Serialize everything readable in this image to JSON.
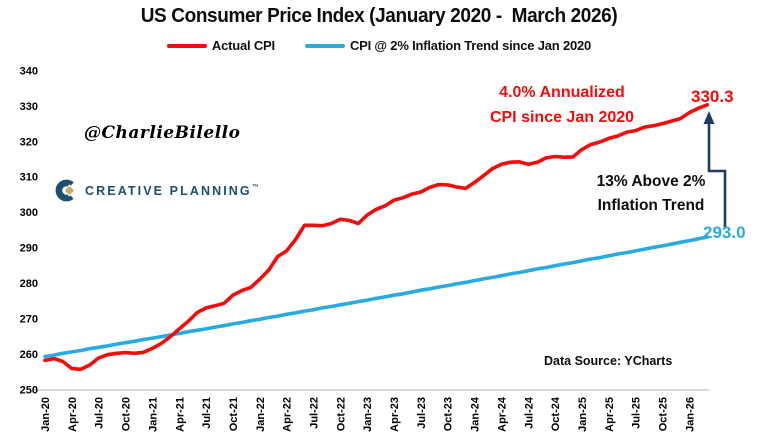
{
  "title": "US Consumer Price Index (January 2020 -  March 2026)",
  "colors": {
    "red": "#f40b0b",
    "blue": "#29abe2",
    "arrow": "#1f3a63",
    "logo_navy": "#1d4f6e",
    "logo_gold": "#c9a86a",
    "axis_line": "#d9d9d9"
  },
  "legend": {
    "items": [
      {
        "label": "Actual CPI",
        "color": "#f40b0b"
      },
      {
        "label": "CPI @ 2% Inflation Trend since Jan 2020",
        "color": "#29abe2"
      }
    ]
  },
  "watermark": "@CharlieBilello",
  "logo": {
    "text": "CREATIVE PLANNING",
    "mark": "™"
  },
  "annotations": {
    "red_note": "4.0% Annualized\nCPI since Jan 2020",
    "black_note": "13% Above 2%\nInflation Trend",
    "actual_end_label": "330.3",
    "trend_end_label": "293.0",
    "data_source": "Data Source: YCharts"
  },
  "chart_data": {
    "type": "line",
    "title": "US Consumer Price Index (January 2020 - March 2026)",
    "x_start": "Jan-20",
    "x_end": "Mar-26",
    "x_interval": "monthly",
    "x_tick_labels": [
      "Jan-20",
      "Apr-20",
      "Jul-20",
      "Oct-20",
      "Jan-21",
      "Apr-21",
      "Jul-21",
      "Oct-21",
      "Jan-22",
      "Apr-22",
      "Jul-22",
      "Oct-22",
      "Jan-23",
      "Apr-23",
      "Jul-23",
      "Oct-23",
      "Jan-24",
      "Apr-24",
      "Jul-24",
      "Oct-24",
      "Jan-25",
      "Apr-25",
      "Jul-25",
      "Oct-25",
      "Jan-26"
    ],
    "months_per_tick": 3,
    "ylim": [
      250,
      340
    ],
    "y_ticks": [
      250,
      260,
      270,
      280,
      290,
      300,
      310,
      320,
      330,
      340
    ],
    "grid": "bottom-axis-only",
    "legend_position": "top",
    "series": [
      {
        "name": "Actual CPI",
        "color": "#f40b0b",
        "end_label": "330.3",
        "values": [
          258.2,
          258.7,
          257.9,
          255.9,
          255.7,
          256.9,
          258.9,
          259.8,
          260.2,
          260.4,
          260.2,
          260.5,
          261.6,
          263.0,
          264.9,
          267.1,
          269.2,
          271.7,
          273.0,
          273.6,
          274.3,
          276.6,
          277.9,
          278.8,
          281.1,
          283.7,
          287.5,
          289.1,
          292.3,
          296.3,
          296.3,
          296.2,
          296.8,
          298.0,
          297.7,
          296.8,
          299.2,
          300.8,
          301.8,
          303.4,
          304.1,
          305.1,
          305.7,
          307.0,
          307.8,
          307.7,
          307.1,
          306.7,
          308.4,
          310.3,
          312.3,
          313.5,
          314.1,
          314.2,
          313.5,
          314.1,
          315.3,
          315.7,
          315.5,
          315.6,
          317.7,
          319.1,
          319.8,
          320.8,
          321.5,
          322.6,
          323.0,
          324.0,
          324.4,
          325.0,
          325.7,
          326.4,
          328.1,
          329.3,
          330.3
        ]
      },
      {
        "name": "CPI @ 2% Inflation Trend since Jan 2020",
        "color": "#29abe2",
        "end_label": "293.0",
        "values": [
          259.3,
          259.7,
          260.2,
          260.6,
          261.0,
          261.5,
          261.9,
          262.3,
          262.8,
          263.2,
          263.6,
          264.1,
          264.5,
          264.9,
          265.4,
          265.8,
          266.3,
          266.7,
          267.1,
          267.6,
          268.0,
          268.5,
          268.9,
          269.4,
          269.8,
          270.3,
          270.7,
          271.2,
          271.6,
          272.1,
          272.5,
          273.0,
          273.4,
          273.9,
          274.3,
          274.8,
          275.2,
          275.7,
          276.1,
          276.6,
          277.0,
          277.5,
          278.0,
          278.4,
          278.9,
          279.3,
          279.8,
          280.2,
          280.7,
          281.2,
          281.6,
          282.1,
          282.6,
          283.0,
          283.5,
          284.0,
          284.4,
          284.9,
          285.4,
          285.8,
          286.3,
          286.8,
          287.2,
          287.7,
          288.2,
          288.6,
          289.1,
          289.6,
          290.1,
          290.5,
          291.0,
          291.5,
          292.0,
          292.5,
          293.0
        ]
      }
    ]
  }
}
